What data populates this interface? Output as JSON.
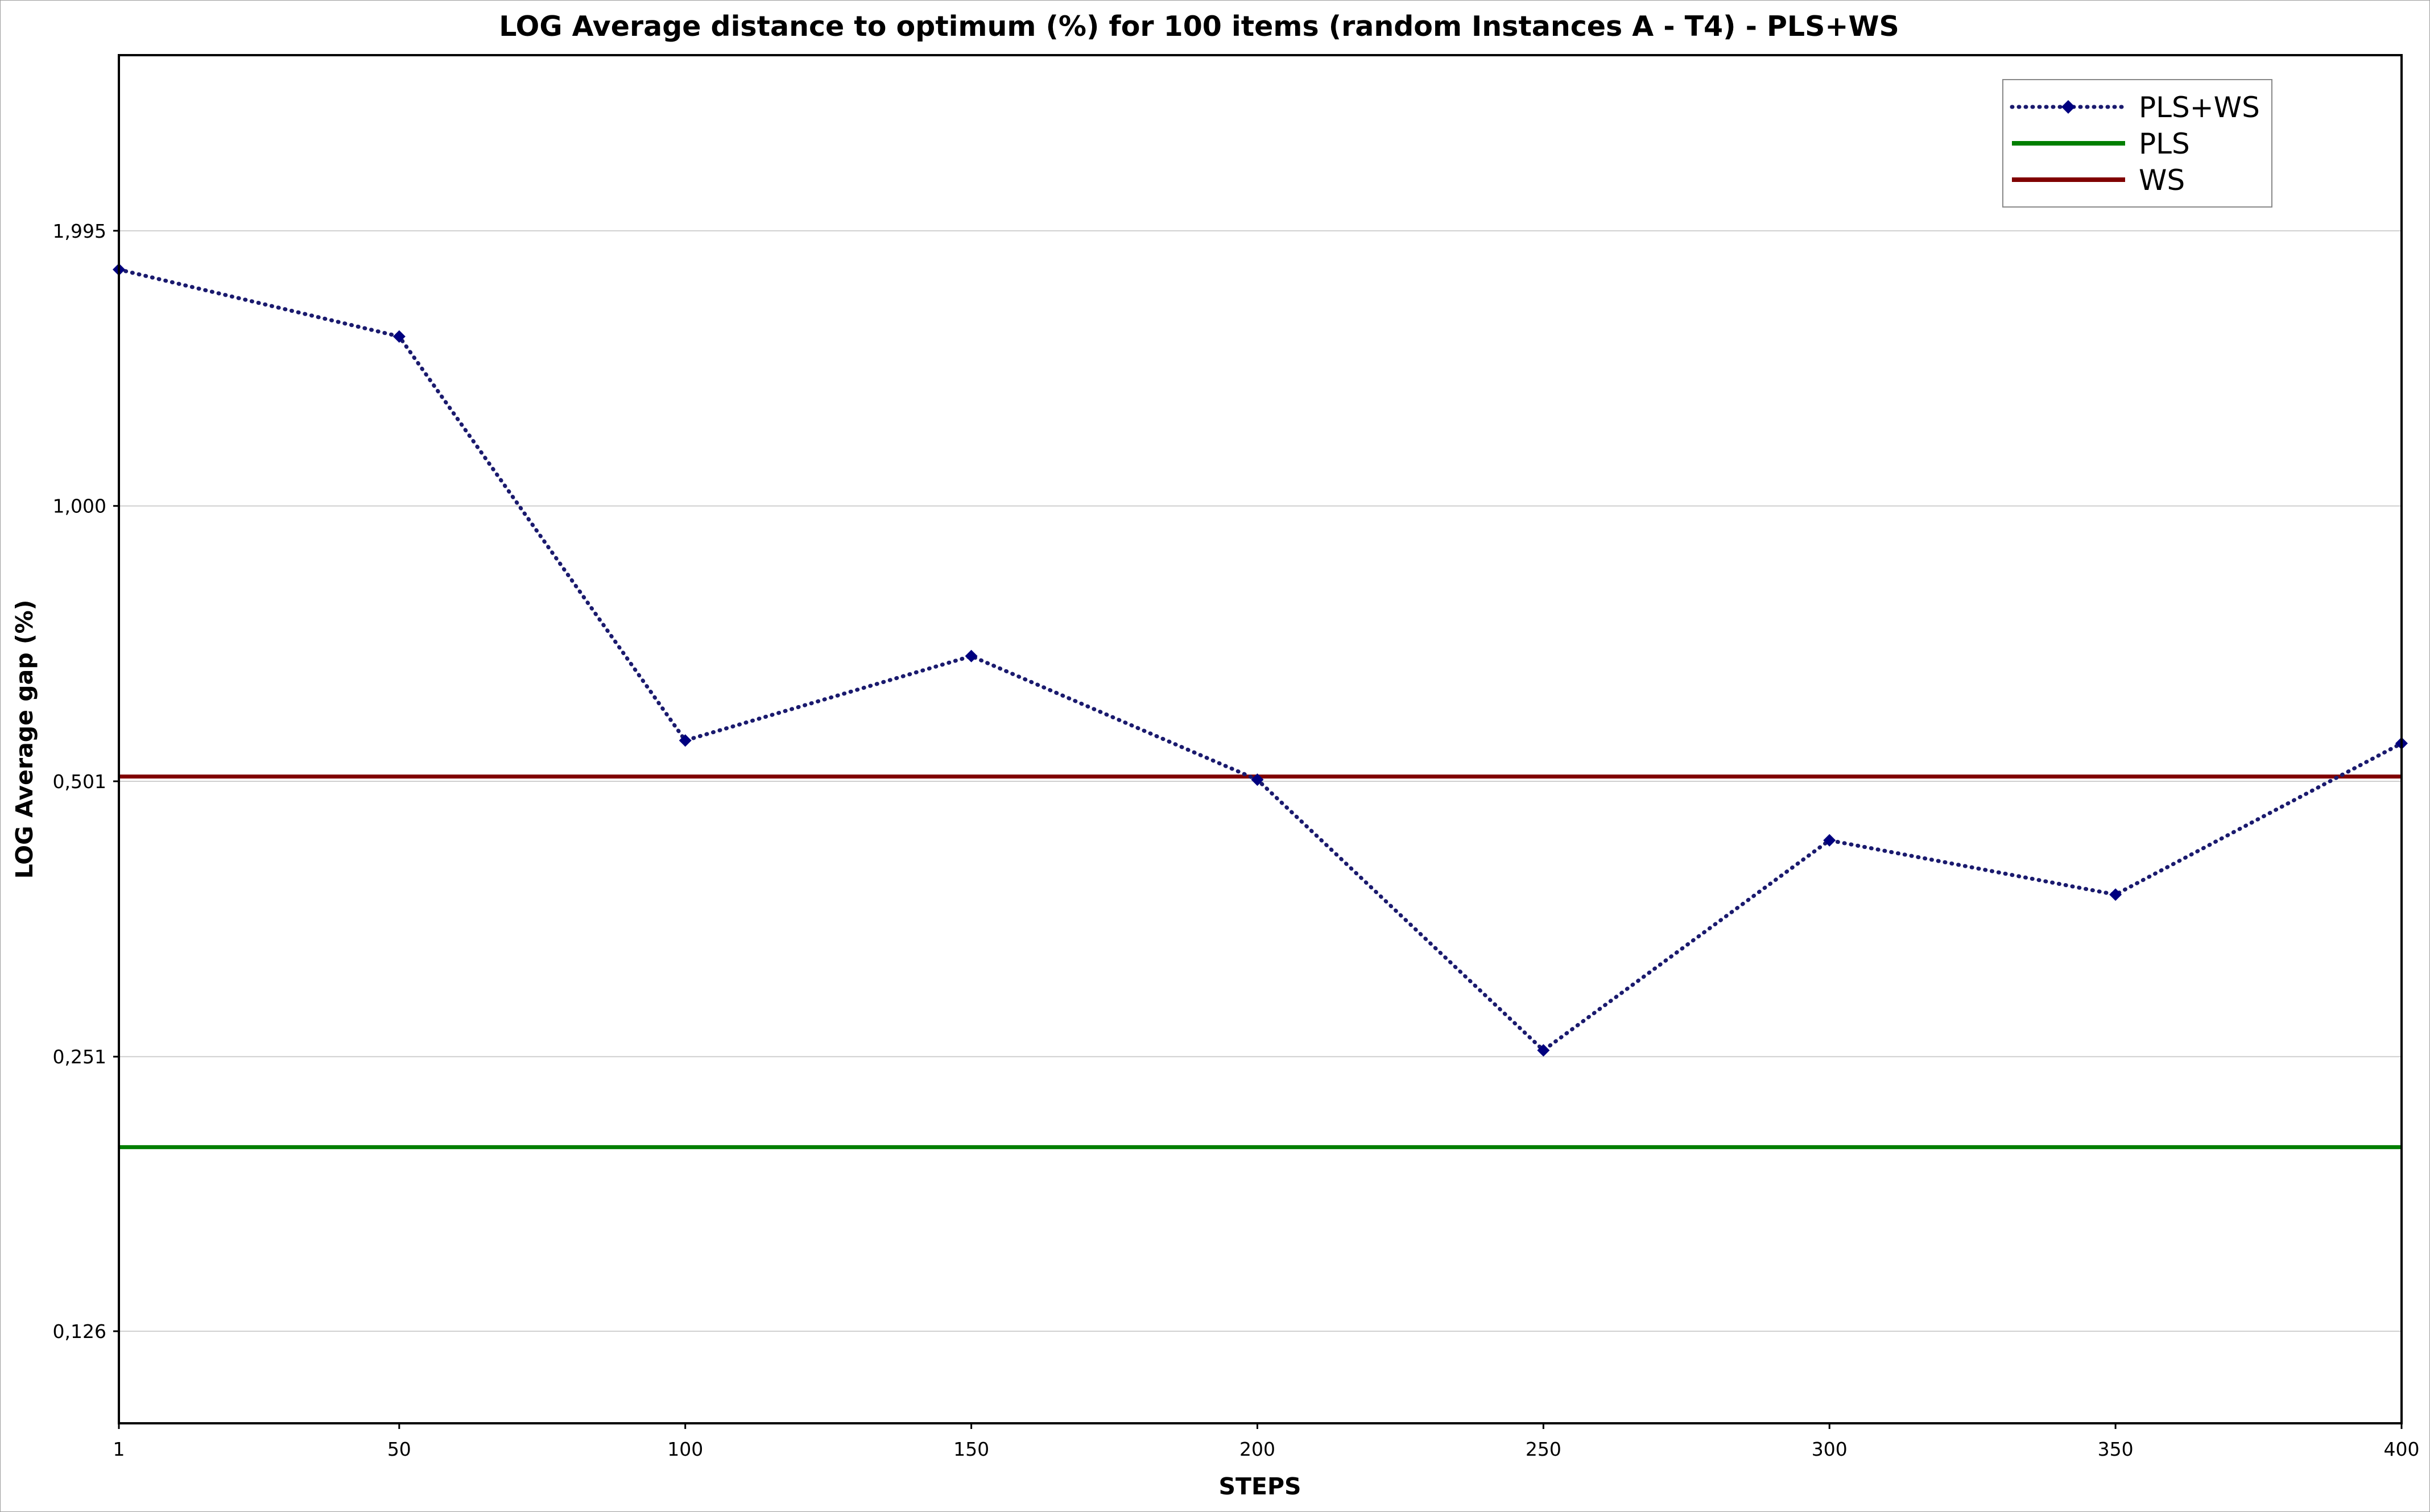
{
  "chart_data": {
    "type": "line",
    "title": "LOG Average distance to optimum (%) for 100 items (random Instances A - T4) - PLS+WS",
    "xlabel": "STEPS",
    "ylabel": "LOG Average gap (%)",
    "x_ticks": [
      "1",
      "50",
      "100",
      "150",
      "200",
      "250",
      "300",
      "350",
      "400"
    ],
    "y_ticks": [
      {
        "value": 1.995,
        "label": "1,995"
      },
      {
        "value": 1.0,
        "label": "1,000"
      },
      {
        "value": 0.501,
        "label": "0,501"
      },
      {
        "value": 0.251,
        "label": "0,251"
      },
      {
        "value": 0.126,
        "label": "0,126"
      }
    ],
    "y_scale": "log",
    "xlim": [
      1,
      400
    ],
    "ylim": [
      0.1,
      3.1
    ],
    "grid": "horizontal",
    "legend_position": "top-right",
    "series": [
      {
        "name": "PLS+WS",
        "style": "dotted-line-diamond-markers",
        "color": "#1a1a6e",
        "marker_color": "#00007f",
        "x": [
          1,
          50,
          100,
          150,
          200,
          250,
          300,
          350,
          400
        ],
        "y": [
          1.81,
          1.53,
          0.555,
          0.686,
          0.503,
          0.255,
          0.432,
          0.377,
          0.551
        ]
      },
      {
        "name": "PLS",
        "style": "solid-line",
        "color": "#007f00",
        "x": [
          1,
          400
        ],
        "y": [
          0.2,
          0.2
        ]
      },
      {
        "name": "WS",
        "style": "solid-line",
        "color": "#800000",
        "x": [
          1,
          400
        ],
        "y": [
          0.507,
          0.507
        ]
      }
    ]
  }
}
